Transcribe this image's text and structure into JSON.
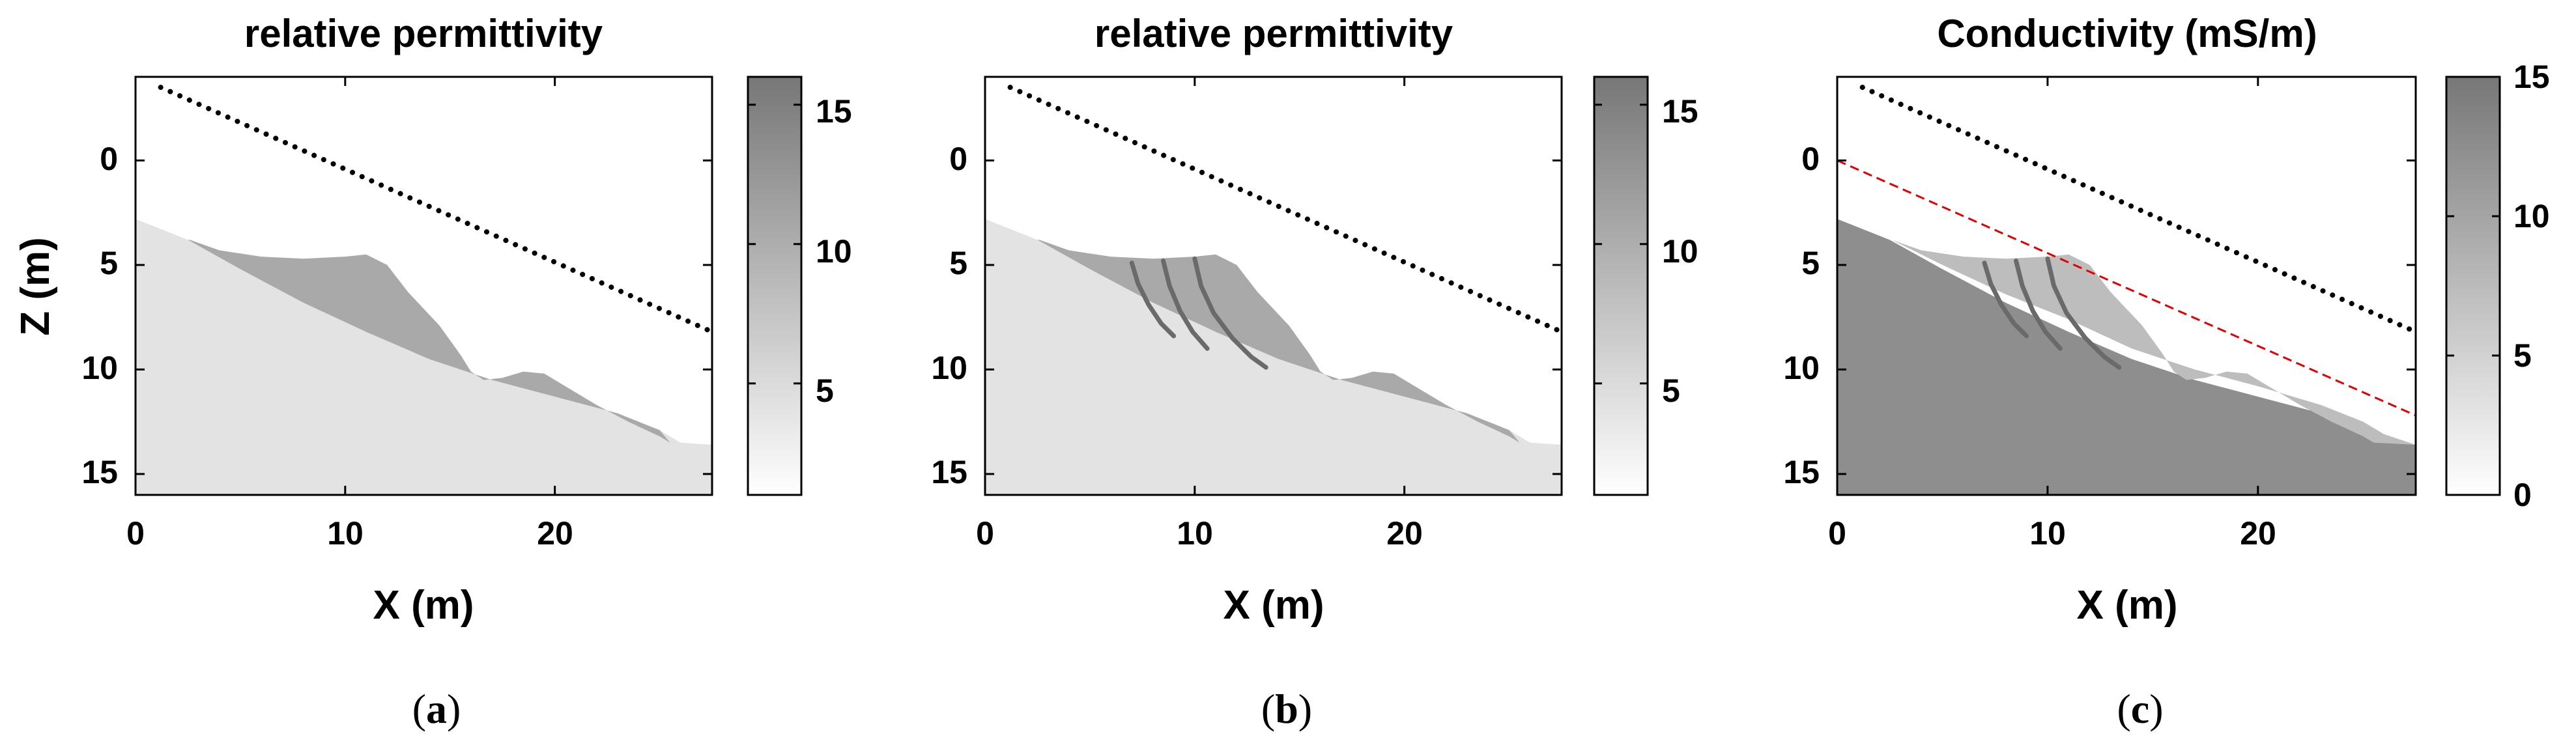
{
  "colors": {
    "background": "#e3e3e3",
    "slide": "#a9a9a9",
    "cracks": "#6a6a6a",
    "slide_c": "#bdbdbd",
    "bedrock_c": "#8e8e8e",
    "red_line": "#e00000"
  },
  "chart_data": [
    {
      "type": "heatmap",
      "panel": "a",
      "title": "relative permittivity",
      "xlabel": "X (m)",
      "ylabel": "Z (m)",
      "xlim": [
        0,
        27.5
      ],
      "ylim": [
        -4,
        16
      ],
      "xticks": [
        "0",
        "10",
        "20"
      ],
      "yticks": [
        "0",
        "5",
        "10",
        "15"
      ],
      "colorbar": {
        "min": 1,
        "max": 16,
        "ticks": [
          "5",
          "10",
          "15"
        ]
      },
      "surface_line": {
        "x": [
          1.2,
          27.5
        ],
        "z": [
          -3.5,
          8.2
        ]
      },
      "caption": "a"
    },
    {
      "type": "heatmap",
      "panel": "b",
      "title": "relative permittivity",
      "xlabel": "X (m)",
      "ylabel": "",
      "xlim": [
        0,
        27.5
      ],
      "ylim": [
        -4,
        16
      ],
      "xticks": [
        "0",
        "10",
        "20"
      ],
      "yticks": [
        "0",
        "5",
        "10",
        "15"
      ],
      "colorbar": {
        "min": 1,
        "max": 16,
        "ticks": [
          "5",
          "10",
          "15"
        ]
      },
      "surface_line": {
        "x": [
          1.2,
          27.5
        ],
        "z": [
          -3.5,
          8.2
        ]
      },
      "caption": "b"
    },
    {
      "type": "heatmap",
      "panel": "c",
      "title": "Conductivity (mS/m)",
      "xlabel": "X (m)",
      "ylabel": "",
      "xlim": [
        0,
        27.5
      ],
      "ylim": [
        -4,
        16
      ],
      "xticks": [
        "0",
        "10",
        "20"
      ],
      "yticks": [
        "0",
        "5",
        "10",
        "15"
      ],
      "colorbar": {
        "min": 0,
        "max": 15,
        "ticks": [
          "0",
          "5",
          "10",
          "15"
        ]
      },
      "surface_line": {
        "x": [
          1.2,
          27.5
        ],
        "z": [
          -3.5,
          8.2
        ]
      },
      "red_line": {
        "x": [
          0,
          27.5
        ],
        "z": [
          0,
          12.2
        ]
      },
      "caption": "c"
    }
  ],
  "geometry": {
    "ground_surface": [
      [
        0,
        2.8
      ],
      [
        2.5,
        3.8
      ],
      [
        5,
        5.2
      ],
      [
        8,
        6.8
      ],
      [
        11,
        8.2
      ],
      [
        14,
        9.5
      ],
      [
        17,
        10.5
      ],
      [
        20,
        11.3
      ],
      [
        23,
        12.1
      ],
      [
        25,
        12.9
      ],
      [
        26,
        13.5
      ],
      [
        27.5,
        13.6
      ]
    ],
    "slide_top": [
      [
        2.6,
        3.8
      ],
      [
        4,
        4.3
      ],
      [
        6,
        4.6
      ],
      [
        8,
        4.7
      ],
      [
        10,
        4.6
      ],
      [
        11,
        4.5
      ],
      [
        12,
        5.0
      ],
      [
        13,
        6.3
      ],
      [
        14.5,
        7.9
      ],
      [
        15.5,
        9.3
      ],
      [
        16,
        10.1
      ],
      [
        16.6,
        10.5
      ],
      [
        17.5,
        10.4
      ],
      [
        18.5,
        10.1
      ],
      [
        19.5,
        10.2
      ],
      [
        20.5,
        10.8
      ],
      [
        22,
        11.7
      ],
      [
        23.5,
        12.5
      ],
      [
        25,
        13.2
      ],
      [
        25.5,
        13.5
      ]
    ],
    "cracks": [
      [
        [
          7.0,
          4.9
        ],
        [
          7.3,
          5.9
        ],
        [
          7.8,
          6.9
        ],
        [
          8.4,
          7.8
        ],
        [
          9.0,
          8.4
        ]
      ],
      [
        [
          8.5,
          4.8
        ],
        [
          8.8,
          6.0
        ],
        [
          9.3,
          7.2
        ],
        [
          9.9,
          8.2
        ],
        [
          10.6,
          9.0
        ]
      ],
      [
        [
          10.0,
          4.7
        ],
        [
          10.3,
          6.0
        ],
        [
          10.9,
          7.3
        ],
        [
          11.8,
          8.5
        ],
        [
          12.7,
          9.4
        ],
        [
          13.4,
          9.9
        ]
      ]
    ],
    "slide_c_top": [
      [
        2.6,
        3.8
      ],
      [
        4,
        4.3
      ],
      [
        6,
        4.6
      ],
      [
        8,
        4.7
      ],
      [
        10,
        4.6
      ],
      [
        11,
        4.5
      ],
      [
        12,
        5.0
      ],
      [
        13,
        6.3
      ],
      [
        14.5,
        7.9
      ],
      [
        15.5,
        9.3
      ],
      [
        16,
        10.1
      ],
      [
        16.6,
        10.5
      ],
      [
        17.5,
        10.4
      ],
      [
        18.5,
        10.1
      ],
      [
        19.5,
        10.2
      ],
      [
        20.5,
        10.8
      ],
      [
        22,
        11.7
      ],
      [
        23.5,
        12.5
      ],
      [
        25,
        13.2
      ],
      [
        25.5,
        13.5
      ]
    ],
    "slide_c_base": [
      [
        2.6,
        3.8
      ],
      [
        5,
        5.0
      ],
      [
        8,
        6.4
      ],
      [
        11,
        7.6
      ],
      [
        14,
        9.0
      ],
      [
        17,
        10.0
      ],
      [
        20,
        10.8
      ],
      [
        23,
        11.7
      ],
      [
        25,
        12.5
      ],
      [
        26,
        13.1
      ],
      [
        27.5,
        13.6
      ]
    ]
  }
}
